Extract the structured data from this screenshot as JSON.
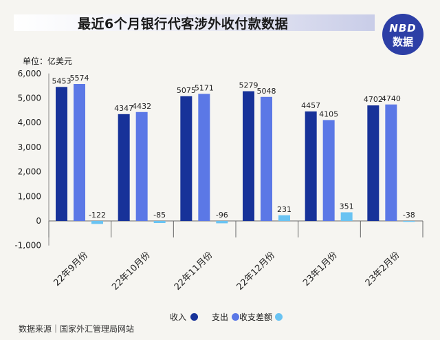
{
  "title": "最近6个月银行代客涉外收付款数据",
  "logo": {
    "line1": "NBD",
    "line2": "数据"
  },
  "unit_label": "单位：亿美元",
  "source": "数据来源｜国家外汇管理局网站",
  "colors": {
    "income": "#173299",
    "expense": "#5b78e6",
    "diff": "#69c3f2",
    "logo_bg": "#2d3fa6"
  },
  "chart_data": {
    "type": "bar",
    "categories": [
      "22年9月份",
      "22年10月份",
      "22年11月份",
      "22年12月份",
      "23年1月份",
      "23年2月份"
    ],
    "series": [
      {
        "name": "收入",
        "values": [
          5453,
          4347,
          5075,
          5279,
          4457,
          4702
        ]
      },
      {
        "name": "支出",
        "values": [
          5574,
          4432,
          5171,
          5048,
          4105,
          4740
        ]
      },
      {
        "name": "收支差额",
        "values": [
          -122,
          -85,
          -96,
          231,
          351,
          -38
        ]
      }
    ],
    "ylim": [
      -1000,
      6000
    ],
    "yticks": [
      -1000,
      0,
      1000,
      2000,
      3000,
      4000,
      5000,
      6000
    ],
    "ytick_labels": [
      "-1,000",
      "0",
      "1,000",
      "2,000",
      "3,000",
      "4,000",
      "5,000",
      "6,000"
    ],
    "legend_position": "bottom-right",
    "grid": false
  }
}
